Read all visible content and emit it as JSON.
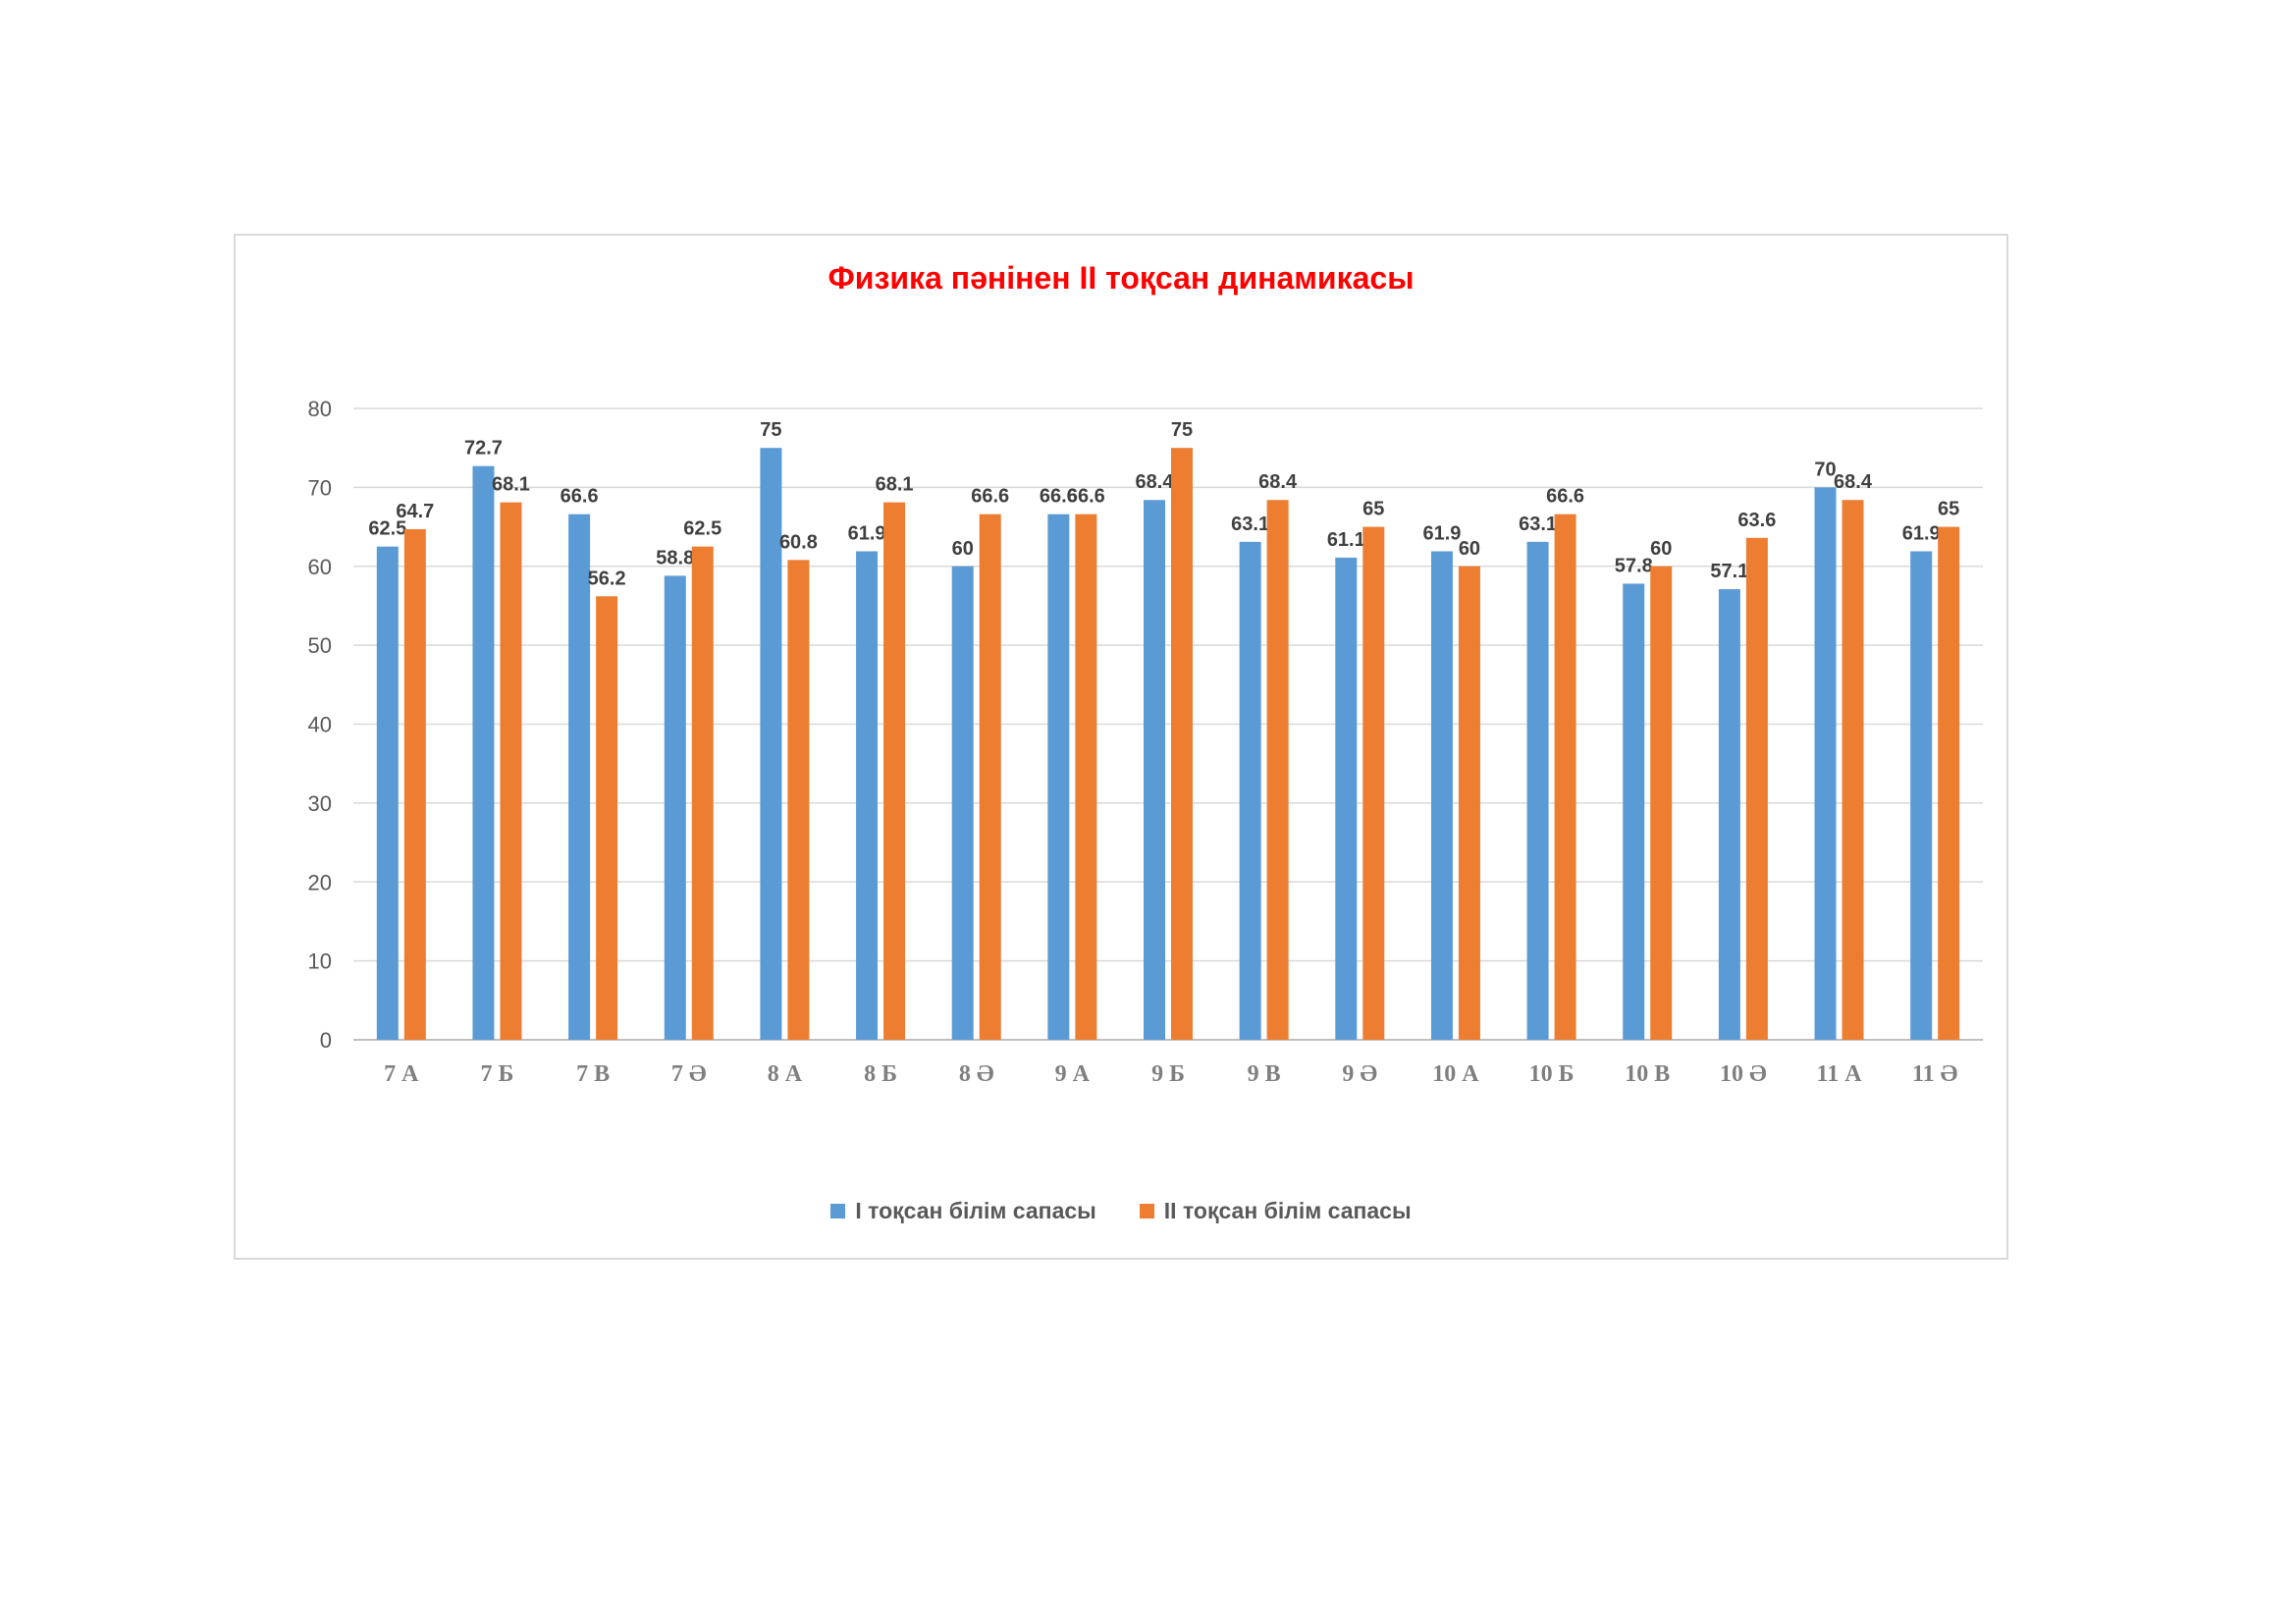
{
  "chart_data": {
    "type": "bar",
    "title": "Физика пәнінен ІІ тоқсан динамикасы",
    "categories": [
      "7 А",
      "7 Б",
      "7 В",
      "7 Ә",
      "8 А",
      "8 Б",
      "8 Ә",
      "9 А",
      "9 Б",
      "9 В",
      "9 Ә",
      "10 А",
      "10 Б",
      "10 В",
      "10 Ә",
      "11 А",
      "11 Ә"
    ],
    "series": [
      {
        "name": "І тоқсан білім сапасы",
        "color": "#5b9bd5",
        "values": [
          62.5,
          72.7,
          66.6,
          58.8,
          75,
          61.9,
          60,
          66.6,
          68.4,
          63.1,
          61.1,
          61.9,
          63.1,
          57.8,
          57.1,
          70,
          61.9
        ]
      },
      {
        "name": "ІІ тоқсан білім сапасы",
        "color": "#ed7d31",
        "values": [
          64.7,
          68.1,
          56.2,
          62.5,
          60.8,
          68.1,
          66.6,
          66.6,
          75,
          68.4,
          65,
          60,
          66.6,
          60,
          63.6,
          68.4,
          65
        ]
      }
    ],
    "xlabel": "",
    "ylabel": "",
    "ylim": [
      0,
      80
    ],
    "yticks": [
      0,
      10,
      20,
      30,
      40,
      50,
      60,
      70,
      80
    ],
    "grid": true,
    "legend_position": "bottom",
    "title_color": "#ff0000"
  }
}
